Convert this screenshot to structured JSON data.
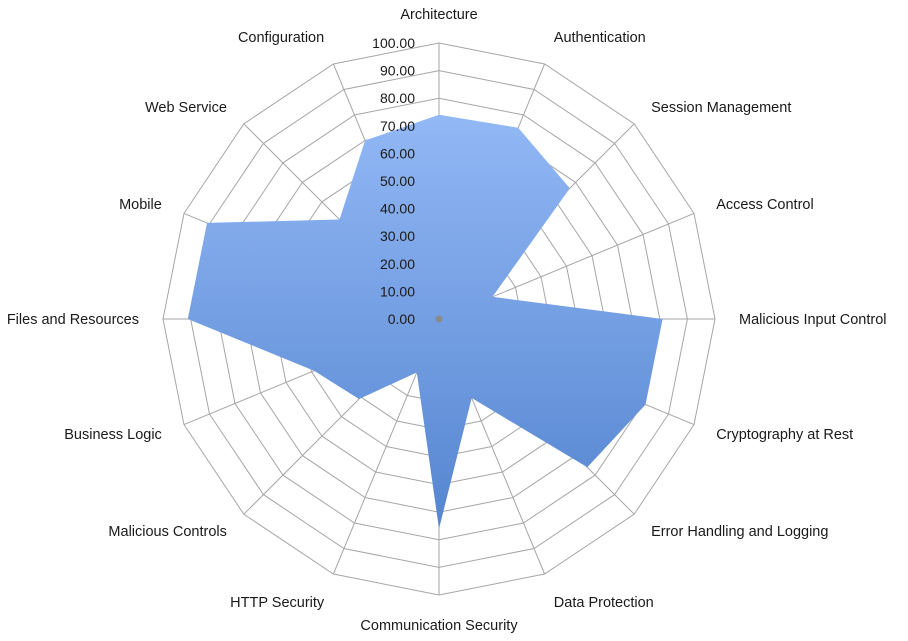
{
  "chart_data": {
    "type": "radar",
    "categories": [
      "Architecture",
      "Authentication",
      "Session Management",
      "Access Control",
      "Malicious Input Control",
      "Cryptography at Rest",
      "Error Handling and Logging",
      "Data Protection",
      "Communication Security",
      "HTTP Security",
      "Malicious Controls",
      "Business Logic",
      "Files and Resources",
      "Mobile",
      "Web Service",
      "Configuration"
    ],
    "series": [
      {
        "values": [
          74,
          75,
          67,
          21,
          81,
          81,
          76,
          31,
          76,
          21,
          41,
          49,
          91,
          91,
          51,
          70
        ]
      }
    ],
    "ylim": [
      0,
      100
    ],
    "yticks": [
      "0.00",
      "10.00",
      "20.00",
      "30.00",
      "40.00",
      "50.00",
      "60.00",
      "70.00",
      "80.00",
      "90.00",
      "100.00"
    ],
    "grid": true,
    "legend": "none",
    "colors": {
      "fill_top": "#92b8f5",
      "fill_bottom": "#5585d0",
      "grid": "#a6a6a6"
    }
  }
}
